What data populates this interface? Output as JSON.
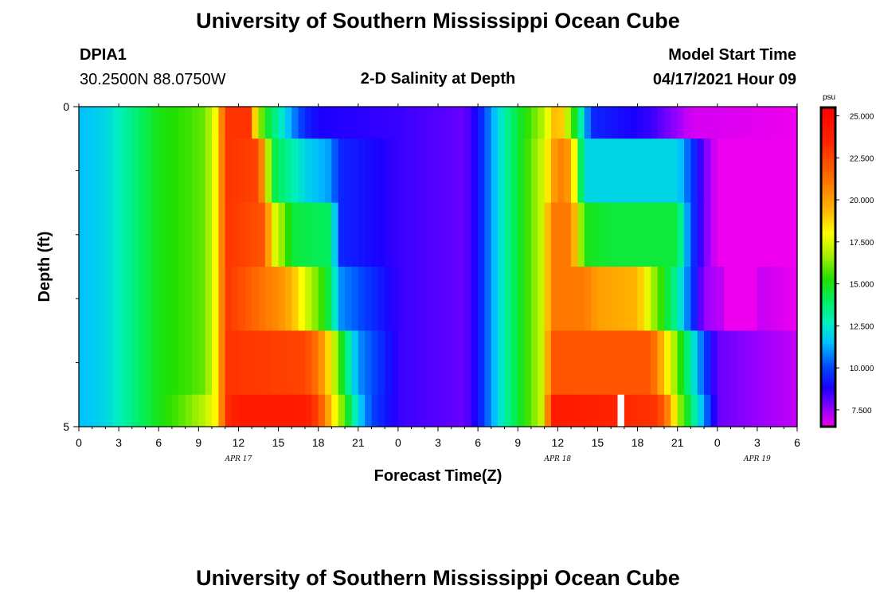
{
  "page": {
    "title_top": "University of Southern Mississippi Ocean Cube",
    "title_bottom": "University of Southern Mississippi Ocean Cube",
    "station_id": "DPIA1",
    "station_coords": "30.2500N  88.0750W",
    "plot_title": "2-D Salinity at Depth",
    "model_label": "Model Start Time",
    "model_time": "04/17/2021 Hour 09"
  },
  "colors": {
    "background": "#ffffff",
    "text": "#000000",
    "missing": "#ffffff"
  },
  "chart_data": {
    "type": "heatmap",
    "title": "2-D Salinity at Depth",
    "xlabel": "Forecast Time(Z)",
    "ylabel": "Depth (ft)",
    "x_tick_labels": [
      "0",
      "3",
      "6",
      "9",
      "12",
      "15",
      "18",
      "21",
      "0",
      "3",
      "6",
      "9",
      "12",
      "15",
      "18",
      "21",
      "0",
      "3",
      "6"
    ],
    "x_minor_ticks_per_major": 2,
    "date_labels": [
      {
        "label": "APR 17",
        "at_hour": 12
      },
      {
        "label": "APR 18",
        "at_hour": 36
      },
      {
        "label": "APR 19",
        "at_hour": 51
      }
    ],
    "xlim_hours": [
      0,
      54
    ],
    "x_step_hours": 0.5,
    "ylim": [
      0,
      5
    ],
    "y_tick_labels": [
      {
        "value": 0,
        "label": "0"
      },
      {
        "value": 5,
        "label": "5"
      }
    ],
    "y_minor_ticks": [
      1,
      2,
      3,
      4
    ],
    "depth_layers": [
      {
        "top": 0,
        "bottom": 0.5
      },
      {
        "top": 0.5,
        "bottom": 1.5
      },
      {
        "top": 1.5,
        "bottom": 2.5
      },
      {
        "top": 2.5,
        "bottom": 3.5
      },
      {
        "top": 3.5,
        "bottom": 4.5
      },
      {
        "top": 4.5,
        "bottom": 5
      }
    ],
    "salinity_profiles": [
      [
        [
          0,
          11.5
        ],
        [
          2,
          12
        ],
        [
          4,
          13.5
        ],
        [
          6,
          15
        ],
        [
          8,
          15.5
        ],
        [
          9.5,
          16
        ],
        [
          10.5,
          18.5
        ],
        [
          11,
          23
        ],
        [
          13,
          23
        ],
        [
          13.3,
          18
        ],
        [
          14,
          15
        ],
        [
          15,
          13
        ],
        [
          16,
          11
        ],
        [
          17,
          9.5
        ],
        [
          18,
          8.8
        ],
        [
          24,
          8.5
        ],
        [
          29,
          8
        ],
        [
          30,
          9
        ],
        [
          31,
          11
        ],
        [
          32,
          13
        ],
        [
          33,
          14.5
        ],
        [
          35,
          17
        ],
        [
          36,
          20
        ],
        [
          37,
          16
        ],
        [
          38,
          12
        ],
        [
          38.5,
          9.5
        ],
        [
          43,
          8.5
        ],
        [
          45,
          7.5
        ],
        [
          46,
          6.8
        ],
        [
          54,
          6.5
        ]
      ],
      [
        [
          0,
          11.5
        ],
        [
          2,
          12
        ],
        [
          4,
          13.5
        ],
        [
          6,
          15
        ],
        [
          8,
          15.5
        ],
        [
          9.5,
          16
        ],
        [
          10.5,
          18.5
        ],
        [
          11,
          23
        ],
        [
          13.5,
          22.5
        ],
        [
          14,
          19
        ],
        [
          14.5,
          14.5
        ],
        [
          16,
          13
        ],
        [
          17,
          12
        ],
        [
          19,
          11
        ],
        [
          19.5,
          9.5
        ],
        [
          24,
          8.5
        ],
        [
          29,
          8
        ],
        [
          30,
          9
        ],
        [
          31,
          11
        ],
        [
          32,
          13
        ],
        [
          33,
          14.5
        ],
        [
          35,
          17.5
        ],
        [
          36,
          21
        ],
        [
          37,
          20
        ],
        [
          38,
          12
        ],
        [
          40,
          12
        ],
        [
          45,
          12
        ],
        [
          46,
          10
        ],
        [
          47,
          8
        ],
        [
          48,
          6.5
        ],
        [
          54,
          6.5
        ]
      ],
      [
        [
          0,
          11.5
        ],
        [
          2,
          12
        ],
        [
          4,
          13.5
        ],
        [
          6,
          15
        ],
        [
          8,
          15.5
        ],
        [
          9.5,
          16
        ],
        [
          10.5,
          18.5
        ],
        [
          11,
          23
        ],
        [
          14,
          22
        ],
        [
          14.5,
          18
        ],
        [
          15.5,
          16
        ],
        [
          16,
          14.5
        ],
        [
          19,
          14
        ],
        [
          19.5,
          9.5
        ],
        [
          24,
          8.5
        ],
        [
          29,
          8
        ],
        [
          30,
          9
        ],
        [
          31,
          11
        ],
        [
          32,
          13
        ],
        [
          33,
          14.5
        ],
        [
          35,
          17.5
        ],
        [
          35.5,
          21
        ],
        [
          37,
          21
        ],
        [
          38,
          15
        ],
        [
          40,
          14.5
        ],
        [
          45,
          14.5
        ],
        [
          46,
          10
        ],
        [
          47,
          8
        ],
        [
          48,
          6.5
        ],
        [
          54,
          6.5
        ]
      ],
      [
        [
          0,
          11.5
        ],
        [
          2,
          12
        ],
        [
          4,
          13.5
        ],
        [
          6,
          15
        ],
        [
          8,
          15.5
        ],
        [
          9.5,
          16
        ],
        [
          10.5,
          18.5
        ],
        [
          11,
          23
        ],
        [
          14,
          21
        ],
        [
          15,
          20.5
        ],
        [
          16,
          19.5
        ],
        [
          17,
          17.5
        ],
        [
          18,
          16
        ],
        [
          19,
          14
        ],
        [
          19.5,
          11
        ],
        [
          24,
          8.5
        ],
        [
          29,
          8
        ],
        [
          30,
          9
        ],
        [
          31,
          11
        ],
        [
          32,
          13
        ],
        [
          33,
          14.5
        ],
        [
          35,
          17.5
        ],
        [
          35.5,
          21
        ],
        [
          38,
          21
        ],
        [
          39,
          20
        ],
        [
          42,
          19.5
        ],
        [
          43,
          17
        ],
        [
          44,
          15
        ],
        [
          45,
          13
        ],
        [
          46,
          10
        ],
        [
          47,
          7.5
        ],
        [
          48.5,
          7
        ],
        [
          49,
          5
        ],
        [
          50.5,
          5
        ],
        [
          51,
          7
        ],
        [
          54,
          6.5
        ]
      ],
      [
        [
          0,
          11.5
        ],
        [
          2,
          12
        ],
        [
          4,
          13.5
        ],
        [
          6,
          15
        ],
        [
          8,
          15.5
        ],
        [
          9.5,
          16
        ],
        [
          10.5,
          18.5
        ],
        [
          11,
          23
        ],
        [
          17,
          22.5
        ],
        [
          18,
          21
        ],
        [
          19,
          18
        ],
        [
          20,
          14
        ],
        [
          21,
          11
        ],
        [
          24,
          8.5
        ],
        [
          29,
          8
        ],
        [
          30,
          9
        ],
        [
          31,
          11
        ],
        [
          32,
          13
        ],
        [
          33,
          14.5
        ],
        [
          35,
          17.5
        ],
        [
          35.5,
          22
        ],
        [
          43,
          22
        ],
        [
          44,
          19
        ],
        [
          45,
          16
        ],
        [
          46,
          13
        ],
        [
          47,
          10
        ],
        [
          48,
          8
        ],
        [
          54,
          7
        ]
      ],
      [
        [
          0,
          11.5
        ],
        [
          2,
          12
        ],
        [
          4,
          13.5
        ],
        [
          6,
          15
        ],
        [
          8,
          16
        ],
        [
          9.5,
          17
        ],
        [
          10.5,
          18.5
        ],
        [
          11,
          23
        ],
        [
          12,
          24
        ],
        [
          17,
          24
        ],
        [
          18,
          22.5
        ],
        [
          19,
          19
        ],
        [
          20,
          15.5
        ],
        [
          21,
          12
        ],
        [
          22,
          10
        ],
        [
          24,
          8.5
        ],
        [
          29,
          8
        ],
        [
          30,
          9
        ],
        [
          31,
          11
        ],
        [
          32,
          13
        ],
        [
          33,
          14.5
        ],
        [
          35,
          17.5
        ],
        [
          35.5,
          24
        ],
        [
          43.5,
          23
        ],
        [
          44.5,
          20
        ],
        [
          45,
          17
        ],
        [
          46,
          14
        ],
        [
          47,
          11
        ],
        [
          48,
          8
        ],
        [
          54,
          7
        ]
      ]
    ],
    "missing_cells": [
      {
        "layer": 5,
        "hour_from": 40.5,
        "hour_to": 41
      }
    ],
    "colorbar": {
      "unit": "psu",
      "range": [
        6.5,
        25.5
      ],
      "ticks": [
        "25.000",
        "22.500",
        "20.000",
        "17.500",
        "15.000",
        "12.500",
        "10.000",
        "7.500"
      ],
      "tick_values": [
        25,
        22.5,
        20,
        17.5,
        15,
        12.5,
        10,
        7.5
      ],
      "stops": [
        {
          "v": 6.5,
          "c": "#ee00ee"
        },
        {
          "v": 7.5,
          "c": "#9900ff"
        },
        {
          "v": 8.8,
          "c": "#1a00ff"
        },
        {
          "v": 10,
          "c": "#0044ff"
        },
        {
          "v": 11.5,
          "c": "#00c0ff"
        },
        {
          "v": 12.7,
          "c": "#00f0c0"
        },
        {
          "v": 14,
          "c": "#00f060"
        },
        {
          "v": 15.3,
          "c": "#22e000"
        },
        {
          "v": 16.6,
          "c": "#a0f000"
        },
        {
          "v": 18,
          "c": "#ffff00"
        },
        {
          "v": 19.3,
          "c": "#ffbb00"
        },
        {
          "v": 20.6,
          "c": "#ff8800"
        },
        {
          "v": 22,
          "c": "#ff5500"
        },
        {
          "v": 23.5,
          "c": "#ff2200"
        },
        {
          "v": 25.5,
          "c": "#ff0000"
        }
      ]
    }
  }
}
